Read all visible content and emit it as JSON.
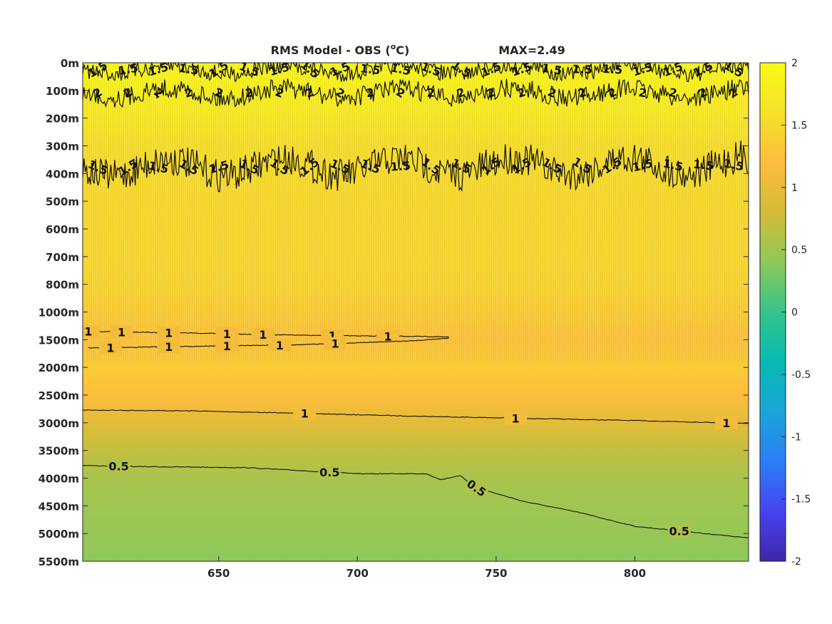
{
  "chart_data": {
    "type": "heatmap",
    "title": "RMS Model - OBS (°C)",
    "title_prefix": "RMS Model - OBS (",
    "title_unit_sup": "o",
    "title_unit": "C",
    "title_suffix": ")",
    "max_label": "MAX=2.49",
    "max_value": 2.49,
    "xlim": [
      601,
      841
    ],
    "x_ticks": [
      650,
      700,
      750,
      800
    ],
    "x_tick_labels": [
      "650",
      "700",
      "750",
      "800"
    ],
    "y_tick_labels": [
      "0m",
      "100m",
      "200m",
      "300m",
      "400m",
      "500m",
      "600m",
      "700m",
      "800m",
      "1000m",
      "1500m",
      "2000m",
      "2500m",
      "3000m",
      "3500m",
      "4000m",
      "4500m",
      "5000m",
      "5500m"
    ],
    "y_axis_note": "piecewise depth axis: 0–800 m in 100 m steps, then 1000–5500 m in 500 m steps",
    "clim": [
      -2,
      2
    ],
    "colorbar_ticks": [
      2,
      1.5,
      1,
      0.5,
      0,
      -0.5,
      -1,
      -1.5,
      -2
    ],
    "colorbar_tick_labels": [
      "2",
      "1.5",
      "1",
      "0.5",
      "0",
      "-0.5",
      "-1",
      "-1.5",
      "-2"
    ],
    "colormap": "parula",
    "colormap_stops": [
      "#3e26a8",
      "#4743f1",
      "#2b7ff6",
      "#1aa5da",
      "#07bab2",
      "#35c48a",
      "#8ec95b",
      "#d4bb36",
      "#fdbd3d",
      "#f5e129",
      "#f9fb15"
    ],
    "field_profile_by_depth": [
      {
        "depth": 0,
        "rms": 1.9
      },
      {
        "depth": 150,
        "rms": 1.75
      },
      {
        "depth": 300,
        "rms": 1.55
      },
      {
        "depth": 500,
        "rms": 1.5
      },
      {
        "depth": 800,
        "rms": 1.45
      },
      {
        "depth": 1500,
        "rms": 1.25
      },
      {
        "depth": 2000,
        "rms": 1.35
      },
      {
        "depth": 2500,
        "rms": 1.2
      },
      {
        "depth": 3000,
        "rms": 0.95
      },
      {
        "depth": 3500,
        "rms": 0.7
      },
      {
        "depth": 4000,
        "rms": 0.55
      },
      {
        "depth": 4500,
        "rms": 0.5
      },
      {
        "depth": 5000,
        "rms": 0.45
      },
      {
        "depth": 5500,
        "rms": 0.4
      }
    ],
    "contours": [
      {
        "level": 1,
        "label": "1",
        "x": [
          601,
          640,
          680,
          720,
          760,
          800,
          841
        ],
        "depth": [
          2770,
          2785,
          2830,
          2880,
          2920,
          2960,
          3010
        ],
        "label_x": [
          681,
          757,
          833
        ]
      },
      {
        "level": 0.5,
        "label": "0.5",
        "x": [
          601,
          620,
          660,
          700,
          725,
          730,
          737,
          742,
          760,
          780,
          800,
          841
        ],
        "depth": [
          3770,
          3790,
          3810,
          3920,
          3920,
          4030,
          3950,
          4160,
          4420,
          4620,
          4870,
          5080
        ],
        "label_x": [
          614,
          690,
          743,
          816
        ],
        "label_rot": [
          0,
          0,
          35,
          0
        ]
      },
      {
        "level": 1,
        "label": "1",
        "x": [
          603,
          640,
          680,
          720,
          733
        ],
        "depth": [
          1350,
          1380,
          1420,
          1440,
          1450
        ],
        "label_x": [
          603,
          615,
          632,
          653,
          666,
          691,
          711
        ]
      },
      {
        "level": 1,
        "label": "1",
        "x": [
          603,
          640,
          680,
          720,
          733
        ],
        "depth": [
          1650,
          1620,
          1590,
          1520,
          1470
        ],
        "label_x": [
          611,
          632,
          653,
          672,
          692
        ]
      },
      {
        "level": 1.5,
        "label": "1.5",
        "x": [
          601,
          841
        ],
        "depth": [
          380,
          370
        ],
        "noisy": true,
        "amplitude_m": 60
      },
      {
        "level": 1.5,
        "label": "1.5",
        "x": [
          601,
          841
        ],
        "depth": [
          25,
          25
        ],
        "noisy": true,
        "amplitude_m": 30
      },
      {
        "level": 2,
        "label": "2",
        "x": [
          601,
          841
        ],
        "depth": [
          110,
          110
        ],
        "noisy": true,
        "amplitude_m": 35
      }
    ]
  }
}
